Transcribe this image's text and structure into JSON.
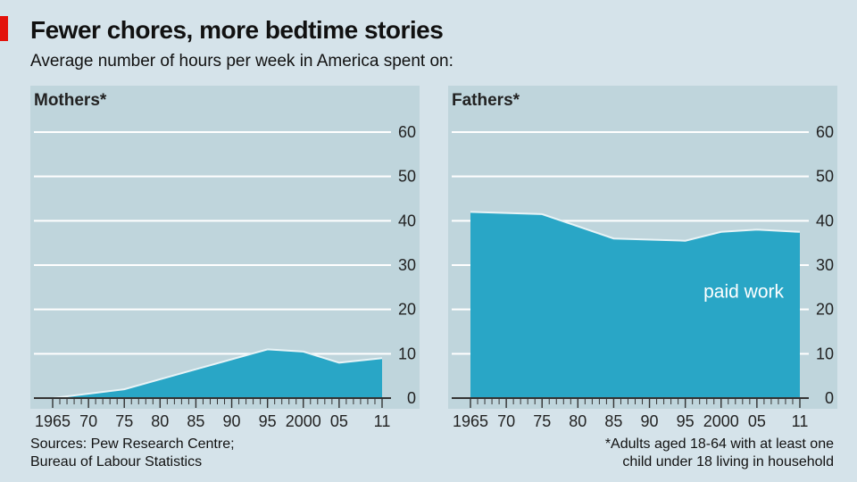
{
  "header": {
    "title": "Fewer chores, more bedtime stories",
    "subtitle": "Average number of hours per week in America spent on:"
  },
  "sources": {
    "line1": "Sources: Pew Research Centre;",
    "line2": "Bureau of Labour Statistics"
  },
  "footnote": {
    "line1": "*Adults aged 18-64 with at least one",
    "line2": "child under 18 living in household"
  },
  "colors": {
    "plot_bg": "#bfd5dc",
    "area": "#29a6c6",
    "grid": "#ffffff",
    "accent_red": "#e3120b"
  },
  "chart_data": [
    {
      "type": "area",
      "title": "Mothers*",
      "series_label": "",
      "x": [
        1965,
        1975,
        1985,
        1995,
        2000,
        2005,
        2011
      ],
      "y": [
        0,
        2,
        6.5,
        11,
        10.5,
        8,
        9
      ],
      "ylim": [
        0,
        60
      ],
      "yticks": [
        0,
        10,
        20,
        30,
        40,
        50,
        60
      ],
      "xlim": [
        1965,
        2011
      ],
      "xticks": [
        {
          "value": 1965,
          "label": "1965"
        },
        {
          "value": 1970,
          "label": "70"
        },
        {
          "value": 1975,
          "label": "75"
        },
        {
          "value": 1980,
          "label": "80"
        },
        {
          "value": 1985,
          "label": "85"
        },
        {
          "value": 1990,
          "label": "90"
        },
        {
          "value": 1995,
          "label": "95"
        },
        {
          "value": 2000,
          "label": "2000"
        },
        {
          "value": 2005,
          "label": "05"
        },
        {
          "value": 2011,
          "label": "11"
        }
      ],
      "grid": true,
      "y_axis_side": "right"
    },
    {
      "type": "area",
      "title": "Fathers*",
      "series_label": "paid work",
      "x": [
        1965,
        1975,
        1985,
        1995,
        2000,
        2005,
        2011
      ],
      "y": [
        42,
        41.5,
        36,
        35.5,
        37.5,
        38,
        37.5
      ],
      "ylim": [
        0,
        60
      ],
      "yticks": [
        0,
        10,
        20,
        30,
        40,
        50,
        60
      ],
      "xlim": [
        1965,
        2011
      ],
      "xticks": [
        {
          "value": 1965,
          "label": "1965"
        },
        {
          "value": 1970,
          "label": "70"
        },
        {
          "value": 1975,
          "label": "75"
        },
        {
          "value": 1980,
          "label": "80"
        },
        {
          "value": 1985,
          "label": "85"
        },
        {
          "value": 1990,
          "label": "90"
        },
        {
          "value": 1995,
          "label": "95"
        },
        {
          "value": 2000,
          "label": "2000"
        },
        {
          "value": 2005,
          "label": "05"
        },
        {
          "value": 2011,
          "label": "11"
        }
      ],
      "grid": true,
      "y_axis_side": "right"
    }
  ]
}
